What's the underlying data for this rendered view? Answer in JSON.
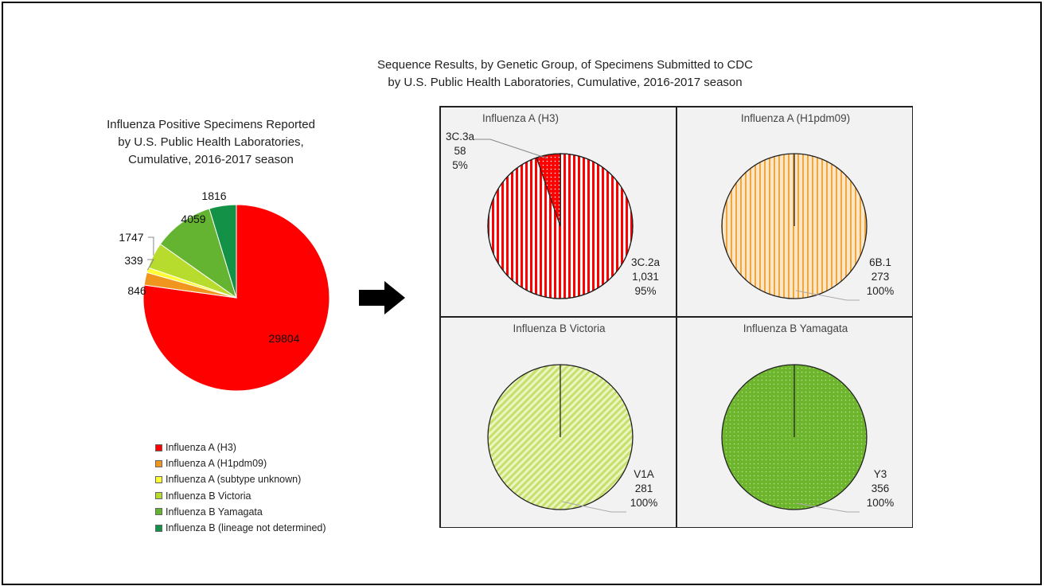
{
  "left_chart": {
    "title_lines": [
      "Influenza Positive Specimens Reported",
      "by U.S. Public Health Laboratories,",
      "Cumulative, 2016-2017  season"
    ]
  },
  "right_section": {
    "title_lines": [
      "Sequence Results, by Genetic Group, of Specimens Submitted to CDC",
      "by U.S. Public Health Laboratories, Cumulative, 2016-2017 season"
    ]
  },
  "chart_data": [
    {
      "type": "pie",
      "categories": [
        "Influenza A (H3)",
        "Influenza A (H1pdm09)",
        "Influenza A (subtype unknown)",
        "Influenza B Victoria",
        "Influenza B Yamagata",
        "Influenza B (lineage not determined)"
      ],
      "values": [
        29804,
        846,
        339,
        1747,
        4059,
        1816
      ],
      "colors": [
        "#ff0000",
        "#f0961e",
        "#ffff33",
        "#b7dc2d",
        "#64b432",
        "#139247"
      ],
      "legend": "bottom"
    },
    {
      "type": "pie",
      "title": "Influenza A (H3)",
      "categories": [
        "3C.2a",
        "3C.3a"
      ],
      "values": [
        1031,
        58
      ],
      "percent_labels": [
        "95%",
        "5%"
      ],
      "value_labels": [
        "1,031",
        "58"
      ],
      "fill": "#ff0000",
      "pattern": "vertical-stripes / dots"
    },
    {
      "type": "pie",
      "title": "Influenza A (H1pdm09)",
      "categories": [
        "6B.1"
      ],
      "values": [
        273
      ],
      "percent_labels": [
        "100%"
      ],
      "value_labels": [
        "273"
      ],
      "fill": "#f0a641",
      "pattern": "vertical-stripes"
    },
    {
      "type": "pie",
      "title": "Influenza B Victoria",
      "categories": [
        "V1A"
      ],
      "values": [
        281
      ],
      "percent_labels": [
        "100%"
      ],
      "value_labels": [
        "281"
      ],
      "fill": "#c5e06b",
      "pattern": "diagonal-stripes"
    },
    {
      "type": "pie",
      "title": "Influenza B Yamagata",
      "categories": [
        "Y3"
      ],
      "values": [
        356
      ],
      "percent_labels": [
        "100%"
      ],
      "value_labels": [
        "356"
      ],
      "fill": "#6cb52c",
      "pattern": "dots"
    }
  ]
}
